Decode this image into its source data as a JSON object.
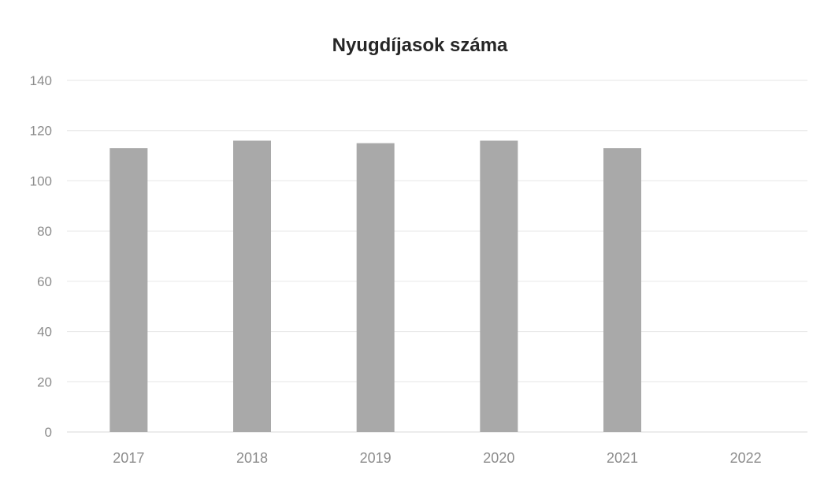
{
  "chart_data": {
    "type": "bar",
    "title": "Nyugdíjasok száma",
    "xlabel": "",
    "ylabel": "",
    "categories": [
      "2017",
      "2018",
      "2019",
      "2020",
      "2021",
      "2022"
    ],
    "values": [
      113,
      116,
      115,
      116,
      113,
      null
    ],
    "ylim": [
      0,
      140
    ],
    "yticks": [
      "0",
      "20",
      "40",
      "60",
      "80",
      "100",
      "120",
      "140"
    ],
    "grid": true,
    "legend": "none",
    "colors": {
      "bar": "#a9a9a9",
      "grid": "#e6e6e6",
      "tick_label": "#8c8c8c",
      "title": "#262626"
    }
  }
}
